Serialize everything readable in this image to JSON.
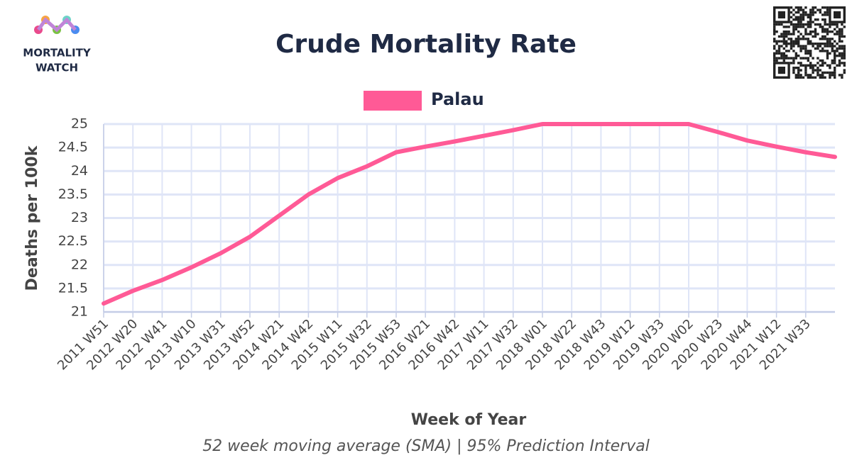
{
  "chart_data": {
    "type": "line",
    "title": "Crude Mortality Rate",
    "brand": [
      "MORTALITY",
      "WATCH"
    ],
    "xlabel": "Week of Year",
    "ylabel": "Deaths per 100k",
    "caption": "52 week moving average (SMA) | 95% Prediction Interval",
    "categories": [
      "2011 W51",
      "2012 W20",
      "2012 W41",
      "2013 W10",
      "2013 W31",
      "2013 W52",
      "2014 W21",
      "2014 W42",
      "2015 W11",
      "2015 W32",
      "2015 W53",
      "2016 W21",
      "2016 W42",
      "2017 W11",
      "2017 W32",
      "2018 W01",
      "2018 W22",
      "2018 W43",
      "2019 W12",
      "2019 W33",
      "2020 W02",
      "2020 W23",
      "2020 W44",
      "2021 W12",
      "2021 W33",
      null
    ],
    "series": [
      {
        "name": "Palau",
        "color": "#ff5a96",
        "values": [
          21.18,
          21.45,
          21.68,
          21.95,
          22.25,
          22.6,
          23.05,
          23.5,
          23.85,
          24.1,
          24.4,
          24.52,
          24.63,
          24.75,
          24.87,
          25,
          25,
          25,
          25,
          25,
          25,
          24.83,
          24.65,
          24.52,
          24.4,
          24.3
        ]
      }
    ],
    "ylim": [
      21,
      25
    ],
    "yticks": [
      21,
      21.5,
      22,
      22.5,
      23,
      23.5,
      24,
      24.5,
      25
    ],
    "grid": true,
    "legend": "top"
  }
}
